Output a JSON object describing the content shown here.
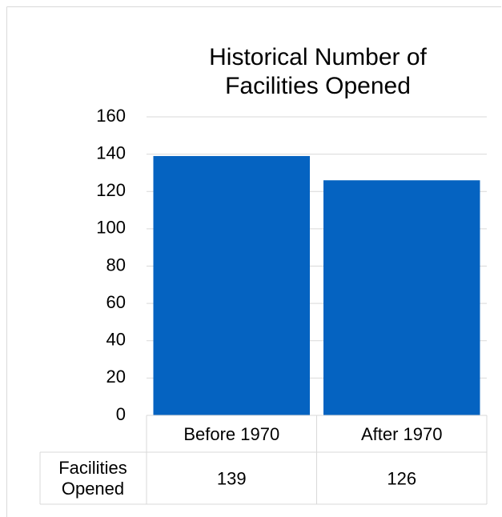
{
  "chart_data": {
    "type": "bar",
    "title": "Historical Number of Facilities Opened",
    "categories": [
      "Before 1970",
      "After 1970"
    ],
    "series": [
      {
        "name": "Facilities Opened",
        "color": "#0563c1",
        "values": [
          139,
          126
        ]
      }
    ],
    "ylim": [
      0,
      160
    ],
    "yticks": [
      0,
      20,
      40,
      60,
      80,
      100,
      120,
      140,
      160
    ],
    "grid": true,
    "data_table": true
  }
}
